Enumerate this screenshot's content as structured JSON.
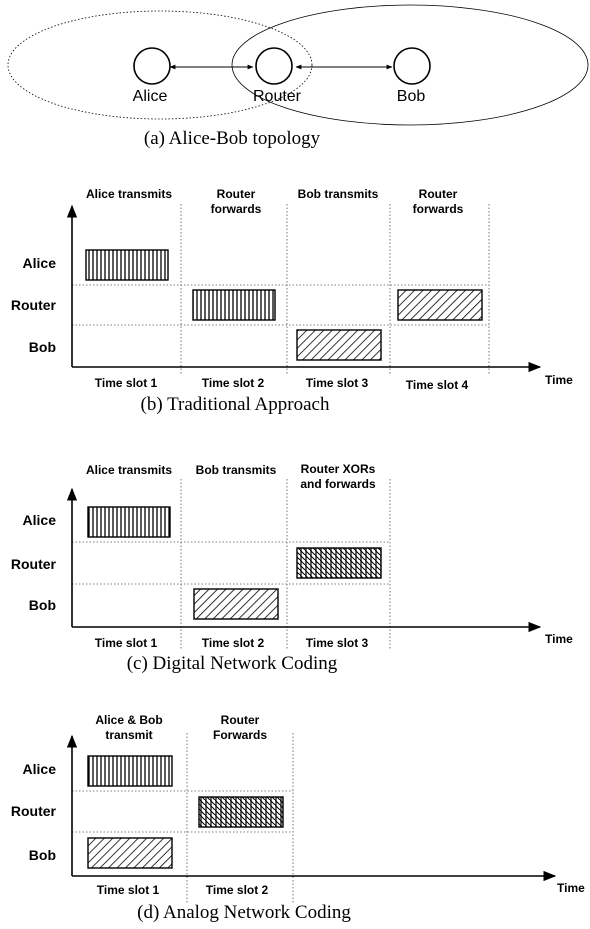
{
  "topology": {
    "nodes": [
      "Alice",
      "Router",
      "Bob"
    ],
    "caption": "(a) Alice-Bob topology"
  },
  "traditional": {
    "phases": [
      [
        "Alice transmits"
      ],
      [
        "Router",
        "forwards"
      ],
      [
        "Bob transmits"
      ],
      [
        "Router",
        "forwards"
      ]
    ],
    "rows": [
      "Alice",
      "Router",
      "Bob"
    ],
    "slots": [
      "Time slot 1",
      "Time slot 2",
      "Time slot 3",
      "Time slot 4"
    ],
    "time_label": "Time",
    "caption": "(b) Traditional Approach"
  },
  "digital": {
    "phases": [
      [
        "Alice transmits"
      ],
      [
        "Bob transmits"
      ],
      [
        "Router XORs",
        "and forwards"
      ]
    ],
    "rows": [
      "Alice",
      "Router",
      "Bob"
    ],
    "slots": [
      "Time slot 1",
      "Time slot 2",
      "Time slot 3"
    ],
    "time_label": "Time",
    "caption": "(c) Digital Network Coding"
  },
  "analog": {
    "phases": [
      [
        "Alice & Bob",
        "transmit"
      ],
      [
        "Router",
        "Forwards"
      ]
    ],
    "rows": [
      "Alice",
      "Router",
      "Bob"
    ],
    "slots": [
      "Time slot 1",
      "Time slot 2"
    ],
    "time_label": "Time",
    "caption": "(d) Analog Network Coding"
  }
}
